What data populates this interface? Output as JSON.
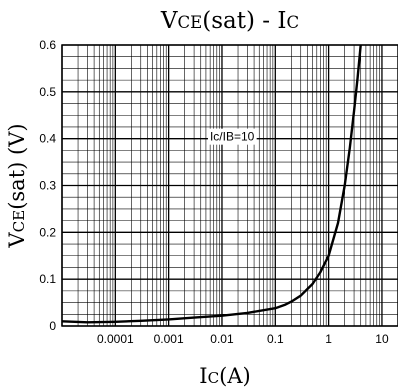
{
  "chart_data": {
    "type": "line",
    "title": {
      "parts": [
        {
          "text": "V",
          "sub": false
        },
        {
          "text": "CE",
          "sub": true
        },
        {
          "text": "(sat) - I",
          "sub": false
        },
        {
          "text": "C",
          "sub": true
        }
      ]
    },
    "xlabel": {
      "parts": [
        {
          "text": "I",
          "sub": false
        },
        {
          "text": "C",
          "sub": true
        },
        {
          "text": "(A)",
          "sub": false
        }
      ]
    },
    "ylabel": {
      "parts": [
        {
          "text": "V",
          "sub": false
        },
        {
          "text": "CE",
          "sub": true
        },
        {
          "text": "(sat) (V)",
          "sub": false
        }
      ]
    },
    "x_scale": "log",
    "xlim": [
      1e-05,
      20
    ],
    "ylim": [
      0,
      0.6
    ],
    "x_ticks": [
      {
        "value": 0.0001,
        "label": "0.0001"
      },
      {
        "value": 0.001,
        "label": "0.001"
      },
      {
        "value": 0.01,
        "label": "0.01"
      },
      {
        "value": 0.1,
        "label": "0.1"
      },
      {
        "value": 1,
        "label": "1"
      },
      {
        "value": 10,
        "label": "10"
      }
    ],
    "y_ticks": [
      {
        "value": 0,
        "label": "0"
      },
      {
        "value": 0.1,
        "label": "0.1"
      },
      {
        "value": 0.2,
        "label": "0.2"
      },
      {
        "value": 0.3,
        "label": "0.3"
      },
      {
        "value": 0.4,
        "label": "0.4"
      },
      {
        "value": 0.5,
        "label": "0.5"
      },
      {
        "value": 0.6,
        "label": "0.6"
      }
    ],
    "grid": true,
    "annotation": "Ic/IB=10",
    "series": [
      {
        "color": "#000000",
        "x": [
          1e-05,
          3e-05,
          0.0001,
          0.0003,
          0.001,
          0.003,
          0.01,
          0.03,
          0.1,
          0.15,
          0.2,
          0.3,
          0.5,
          0.7,
          1,
          1.5,
          2,
          2.5,
          3,
          3.5,
          4
        ],
        "y": [
          0.01,
          0.008,
          0.009,
          0.011,
          0.014,
          0.018,
          0.022,
          0.028,
          0.038,
          0.045,
          0.052,
          0.065,
          0.09,
          0.115,
          0.15,
          0.22,
          0.3,
          0.38,
          0.46,
          0.53,
          0.6
        ]
      }
    ]
  }
}
